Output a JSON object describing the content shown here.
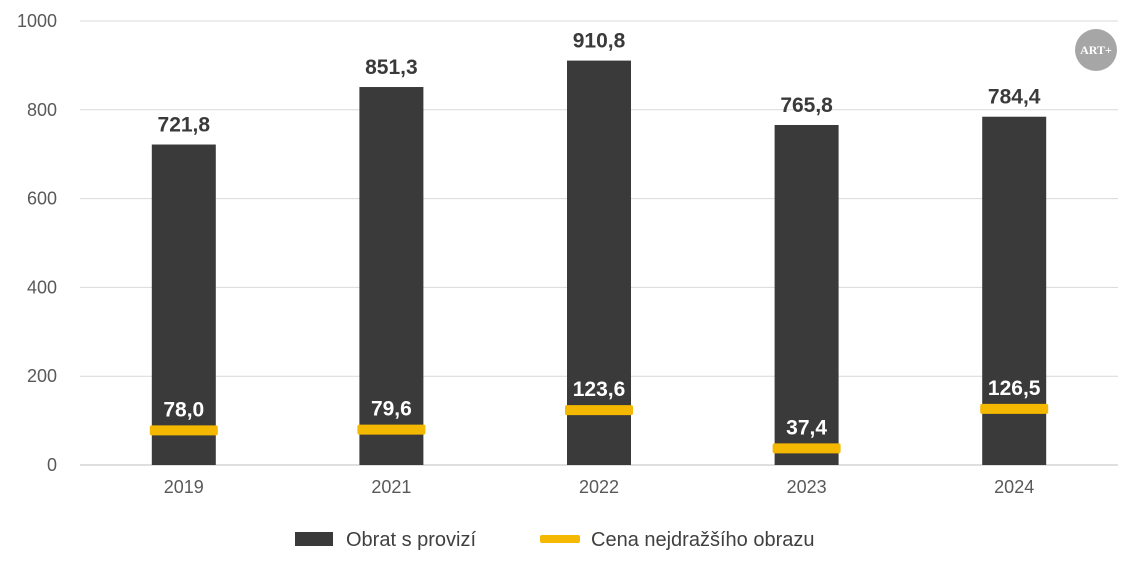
{
  "chart_data": {
    "type": "bar",
    "categories": [
      "2019",
      "2021",
      "2022",
      "2023",
      "2024"
    ],
    "ylim": [
      0,
      1000
    ],
    "yticks": [
      "0",
      "200",
      "400",
      "600",
      "800",
      "1000"
    ],
    "grid": true,
    "legend_position": "bottom",
    "series": [
      {
        "name": "Obrat s provizí",
        "kind": "bar",
        "color": "#3a3a3a",
        "values": [
          721.8,
          851.3,
          910.8,
          765.8,
          784.4
        ],
        "labels": [
          "721,8",
          "851,3",
          "910,8",
          "765,8",
          "784,4"
        ]
      },
      {
        "name": "Cena nejdražšího obrazu",
        "kind": "marker",
        "color": "#f5b800",
        "values": [
          78.0,
          79.6,
          123.6,
          37.4,
          126.5
        ],
        "labels": [
          "78,0",
          "79,6",
          "123,6",
          "37,4",
          "126,5"
        ]
      }
    ]
  },
  "logo": {
    "text": "ART+",
    "color": "#a6a6a6"
  }
}
